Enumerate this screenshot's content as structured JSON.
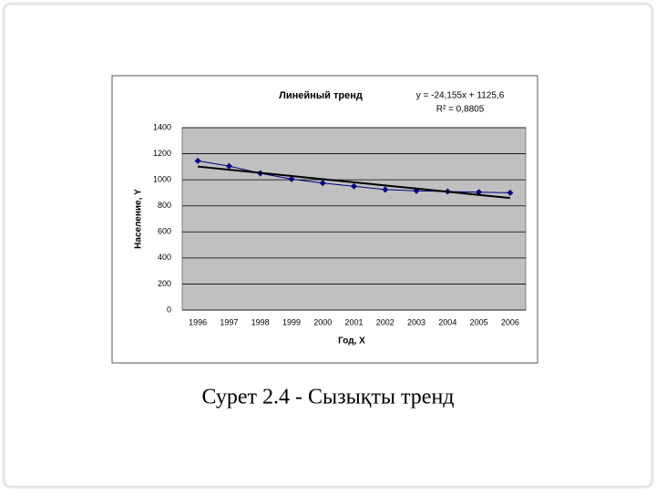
{
  "chart_data": {
    "type": "line",
    "title": "Линейный тренд",
    "equation": "y = -24,155x + 1125,6",
    "r_squared": "R² = 0,8805",
    "x_label": "Год, X",
    "y_label": "Население, Y",
    "categories": [
      "1996",
      "1997",
      "1998",
      "1999",
      "2000",
      "2001",
      "2002",
      "2003",
      "2004",
      "2005",
      "2006"
    ],
    "series": [
      {
        "color": "#000080",
        "values": [
          1145,
          1105,
          1050,
          1005,
          975,
          950,
          925,
          915,
          910,
          905,
          900
        ]
      },
      {
        "color": "#000000",
        "values": [
          1101.4,
          1077.3,
          1053.1,
          1029.0,
          1004.8,
          980.7,
          956.5,
          932.4,
          908.2,
          884.1,
          859.9
        ]
      }
    ],
    "ylim": [
      0,
      1400
    ],
    "yticks": [
      0,
      200,
      400,
      600,
      800,
      1000,
      1200,
      1400
    ],
    "grid": true,
    "plot_background": "#c0c0c0"
  },
  "caption": "Сурет 2.4 - Сызықты тренд"
}
